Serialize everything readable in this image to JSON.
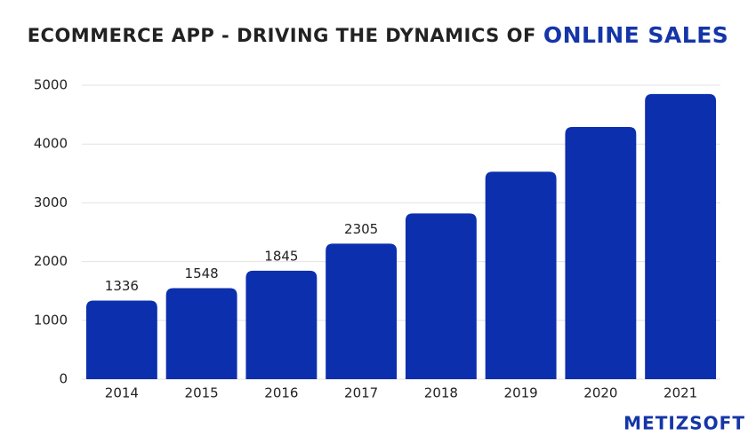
{
  "chart_data": {
    "type": "bar",
    "title": "ECOMMERCE APP - DRIVING THE DYNAMICS OF",
    "title_highlight": "ONLINE SALES",
    "categories": [
      "2014",
      "2015",
      "2016",
      "2017",
      "2018",
      "2019",
      "2020",
      "2021"
    ],
    "values": [
      1336,
      1548,
      1845,
      2305,
      2820,
      3530,
      4290,
      4850
    ],
    "value_labels": [
      "1336",
      "1548",
      "1845",
      "2305",
      null,
      null,
      null,
      null
    ],
    "color": "#0b2fad",
    "highlight_color": "#1536a8",
    "ylim": [
      0,
      5000
    ],
    "yticks": [
      0,
      1000,
      2000,
      3000,
      4000,
      5000
    ],
    "grid": true,
    "logo": "METIZSOFT"
  }
}
